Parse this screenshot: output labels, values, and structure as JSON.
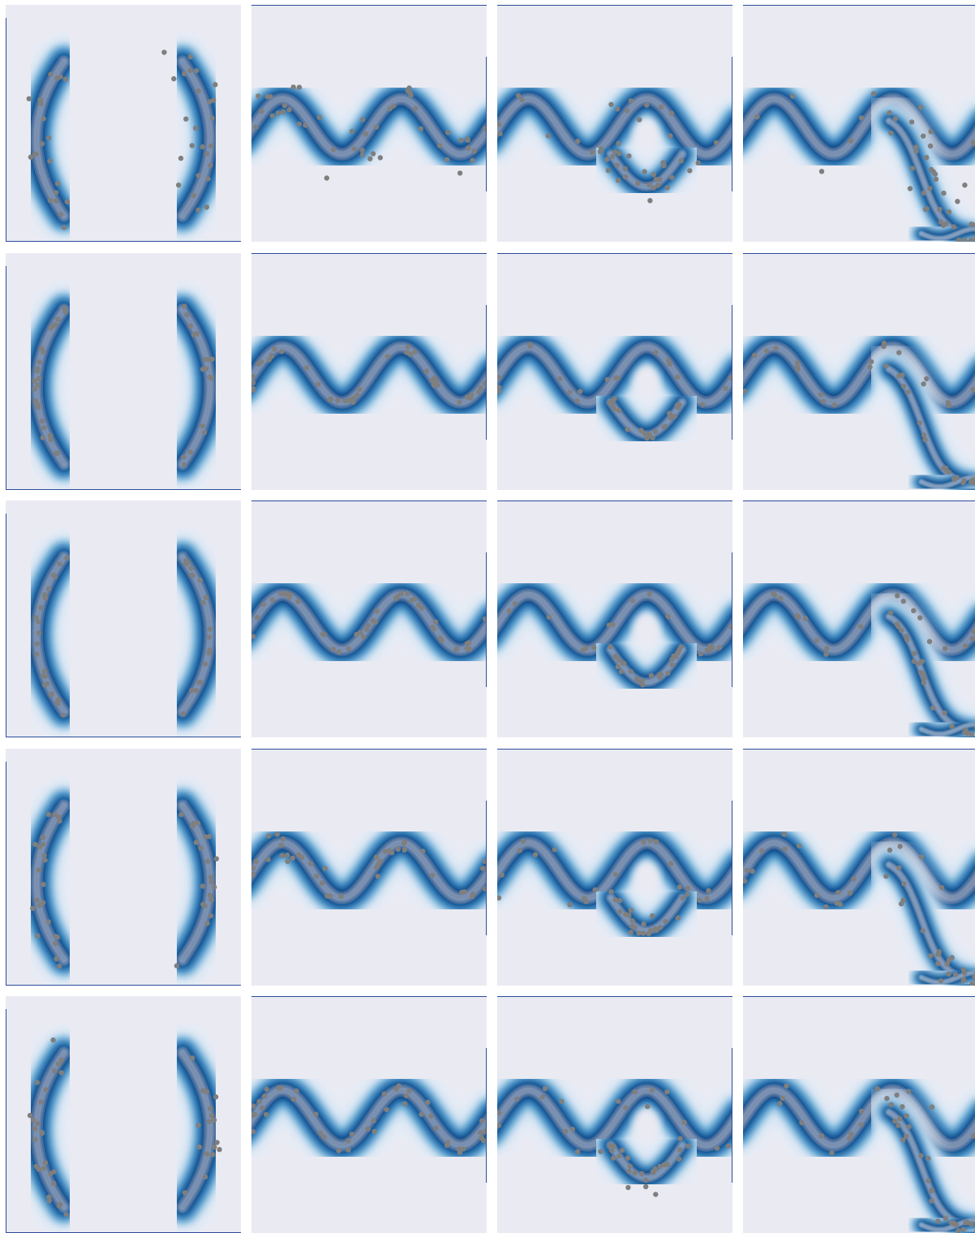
{
  "figure": {
    "rows": 5,
    "cols": 4,
    "colors": {
      "axes_background": "#eaeaf2",
      "figure_background": "#ffffff",
      "density_dark": "#08306b",
      "density_mid": "#2171b5",
      "density_light": "#c6dbef",
      "points": "#7f7f7f",
      "spine": "#2b4c9a"
    }
  },
  "chart_data": [
    {
      "panel": 1,
      "type": "contour",
      "density": "two-moons",
      "points_style": "scattered",
      "ticks": "none",
      "grid": false
    },
    {
      "panel": 2,
      "type": "contour",
      "density": "sine",
      "points_style": "scattered",
      "ticks": "none",
      "grid": false
    },
    {
      "panel": 3,
      "type": "contour",
      "density": "sine-with-ring",
      "points_style": "scattered",
      "ticks": "none",
      "grid": false
    },
    {
      "panel": 4,
      "type": "contour",
      "density": "sine-with-branch",
      "points_style": "scattered",
      "ticks": "none",
      "grid": false
    },
    {
      "panel": 5,
      "type": "contour",
      "density": "two-moons",
      "points_style": "on-curve",
      "ticks": "none",
      "grid": false
    },
    {
      "panel": 6,
      "type": "contour",
      "density": "sine",
      "points_style": "on-curve",
      "ticks": "none",
      "grid": false
    },
    {
      "panel": 7,
      "type": "contour",
      "density": "sine-with-ring",
      "points_style": "on-curve",
      "ticks": "none",
      "grid": false
    },
    {
      "panel": 8,
      "type": "contour",
      "density": "sine-with-branch",
      "points_style": "on-curve",
      "ticks": "none",
      "grid": false
    },
    {
      "panel": 9,
      "type": "contour",
      "density": "two-moons",
      "points_style": "on-curve",
      "ticks": "none",
      "grid": false
    },
    {
      "panel": 10,
      "type": "contour",
      "density": "sine",
      "points_style": "on-curve",
      "ticks": "none",
      "grid": false
    },
    {
      "panel": 11,
      "type": "contour",
      "density": "sine-with-ring",
      "points_style": "on-curve",
      "ticks": "none",
      "grid": false
    },
    {
      "panel": 12,
      "type": "contour",
      "density": "sine-with-branch",
      "points_style": "on-curve",
      "ticks": "none",
      "grid": false
    },
    {
      "panel": 13,
      "type": "contour",
      "density": "two-moons",
      "points_style": "loose",
      "ticks": "none",
      "grid": false
    },
    {
      "panel": 14,
      "type": "contour",
      "density": "sine",
      "points_style": "loose",
      "ticks": "none",
      "grid": false
    },
    {
      "panel": 15,
      "type": "contour",
      "density": "sine-with-ring",
      "points_style": "loose",
      "ticks": "none",
      "grid": false
    },
    {
      "panel": 16,
      "type": "contour",
      "density": "sine-with-branch",
      "points_style": "loose",
      "ticks": "none",
      "grid": false
    },
    {
      "panel": 17,
      "type": "contour",
      "density": "two-moons",
      "points_style": "loose",
      "ticks": "none",
      "grid": false
    },
    {
      "panel": 18,
      "type": "contour",
      "density": "sine",
      "points_style": "loose",
      "ticks": "none",
      "grid": false
    },
    {
      "panel": 19,
      "type": "contour",
      "density": "sine-with-ring",
      "points_style": "loose",
      "ticks": "none",
      "grid": false
    },
    {
      "panel": 20,
      "type": "contour",
      "density": "sine-with-branch",
      "points_style": "loose",
      "ticks": "none",
      "grid": false
    }
  ]
}
